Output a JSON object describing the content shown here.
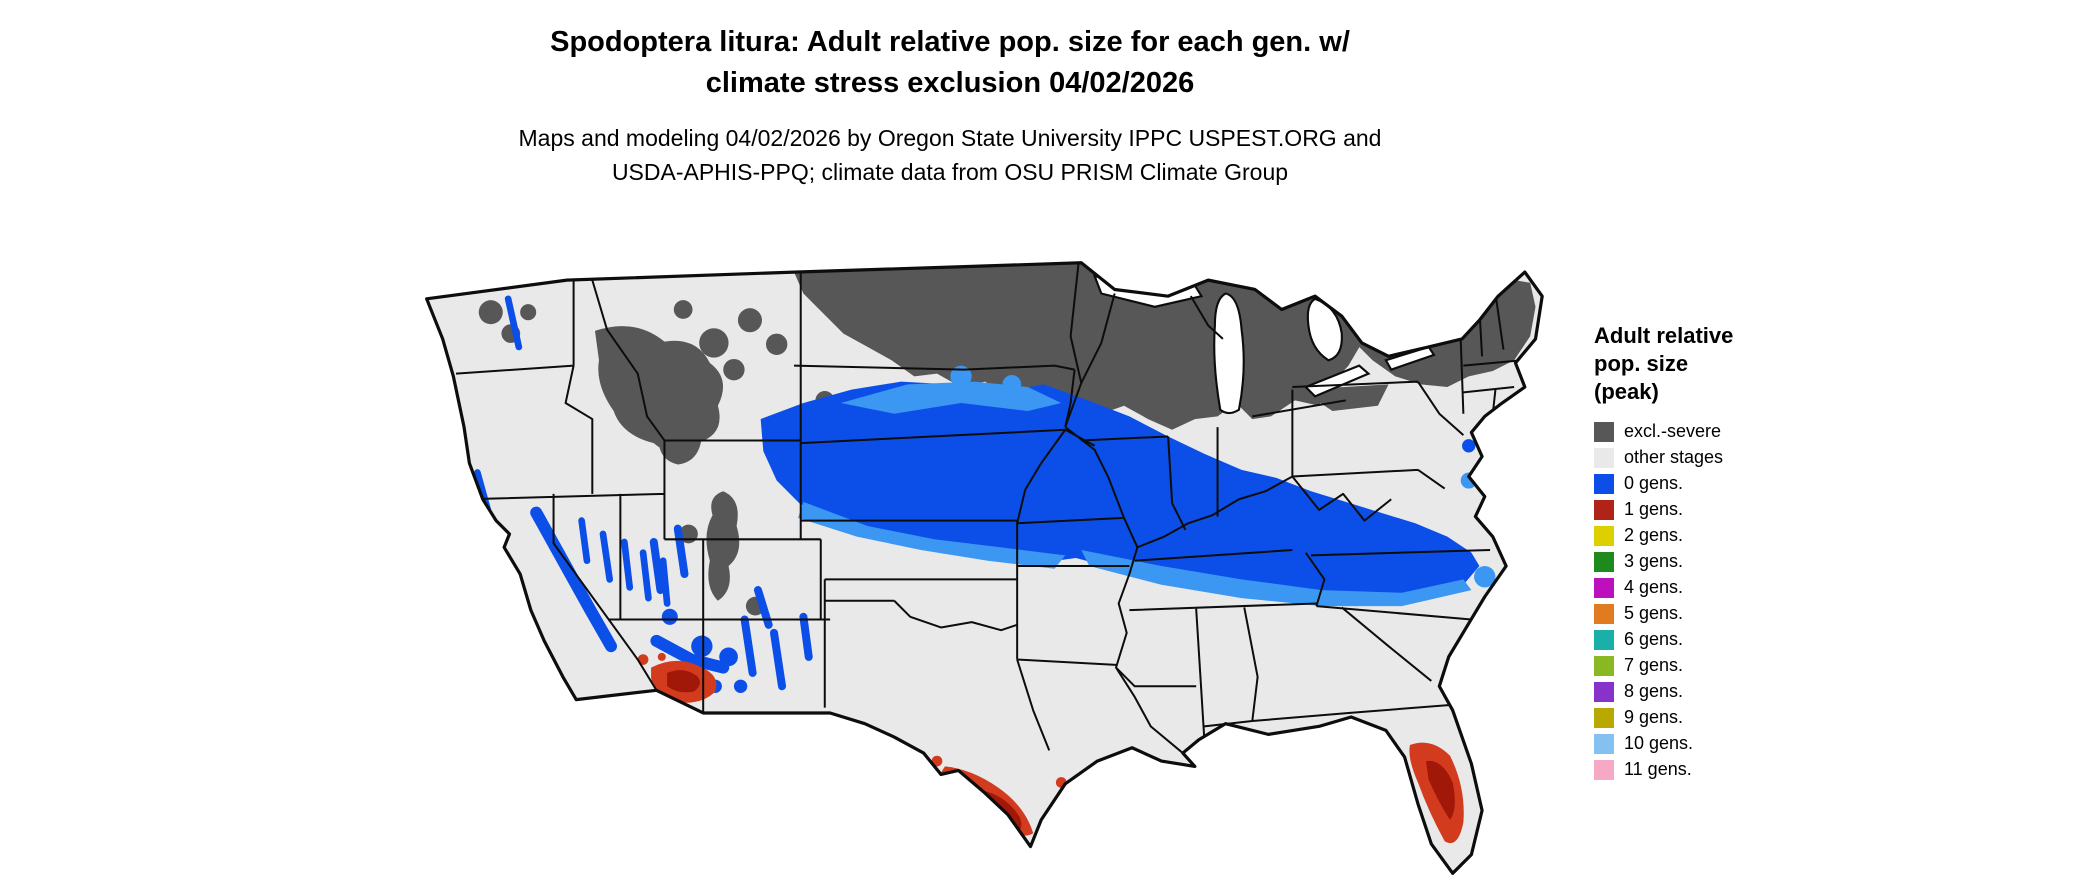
{
  "title": {
    "line1": "Spodoptera litura: Adult relative pop. size for each gen. w/",
    "line2": "climate stress exclusion 04/02/2026"
  },
  "subtitle": {
    "line1": "Maps and modeling 04/02/2026 by Oregon State University IPPC USPEST.ORG and",
    "line2": "USDA-APHIS-PPQ; climate data from OSU PRISM Climate Group"
  },
  "legend": {
    "title_lines": [
      "Adult relative",
      "pop. size",
      "(peak)"
    ],
    "items": [
      {
        "label": "excl.-severe",
        "color": "#575757"
      },
      {
        "label": "other stages",
        "color": "#e9e9e9"
      },
      {
        "label": "0 gens.",
        "color": "#0c4fe8"
      },
      {
        "label": "1 gens.",
        "color": "#b02418"
      },
      {
        "label": "2 gens.",
        "color": "#ddd000"
      },
      {
        "label": "3 gens.",
        "color": "#1e8a1e"
      },
      {
        "label": "4 gens.",
        "color": "#bb10bb"
      },
      {
        "label": "5 gens.",
        "color": "#e07b20"
      },
      {
        "label": "6 gens.",
        "color": "#18b0a8"
      },
      {
        "label": "7 gens.",
        "color": "#8ab822"
      },
      {
        "label": "8 gens.",
        "color": "#8832cc"
      },
      {
        "label": "9 gens.",
        "color": "#b8a800"
      },
      {
        "label": "10 gens.",
        "color": "#85c1f0"
      },
      {
        "label": "11 gens.",
        "color": "#f7a8c4"
      }
    ]
  },
  "map": {
    "colors": {
      "excl_severe": "#575757",
      "other_stages": "#e9e9e9",
      "gens0": "#0c4fe8",
      "gens0_light": "#3b97f2",
      "gens1": "#d23b1e",
      "gens1_dark": "#a11708",
      "border": "#0d0d0d",
      "water": "#ffffff"
    }
  }
}
